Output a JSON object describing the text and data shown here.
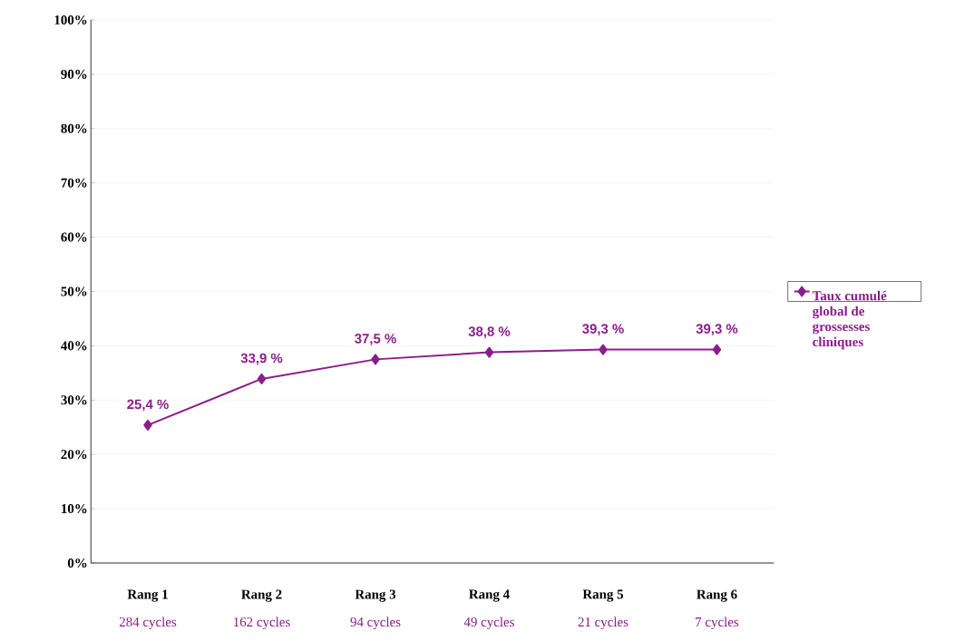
{
  "chart_data": {
    "type": "line",
    "categories": [
      "Rang 1",
      "Rang 2",
      "Rang 3",
      "Rang 4",
      "Rang 5",
      "Rang 6"
    ],
    "annotations": [
      "284 cycles",
      "162 cycles",
      "94 cycles",
      "49 cycles",
      "21 cycles",
      "7 cycles"
    ],
    "series": [
      {
        "name": "Taux cumulé global de grossesses cliniques",
        "color": "#8b1e8b",
        "values": [
          25.4,
          33.9,
          37.5,
          38.8,
          39.3,
          39.3
        ],
        "value_labels": [
          "25,4 %",
          "33,9 %",
          "37,5 %",
          "38,8 %",
          "39,3 %",
          "39,3 %"
        ]
      }
    ],
    "ylim": [
      0,
      100
    ],
    "yticks": [
      {
        "value": 0,
        "label": "0%"
      },
      {
        "value": 10,
        "label": "10%"
      },
      {
        "value": 20,
        "label": "20%"
      },
      {
        "value": 30,
        "label": "30%"
      },
      {
        "value": 40,
        "label": "40%"
      },
      {
        "value": 50,
        "label": "50%"
      },
      {
        "value": 60,
        "label": "60%"
      },
      {
        "value": 70,
        "label": "70%"
      },
      {
        "value": 80,
        "label": "80%"
      },
      {
        "value": 90,
        "label": "90%"
      },
      {
        "value": 100,
        "label": "100%"
      }
    ],
    "grid": "y",
    "legend": "right",
    "marker": "diamond",
    "line_style": "solid"
  }
}
